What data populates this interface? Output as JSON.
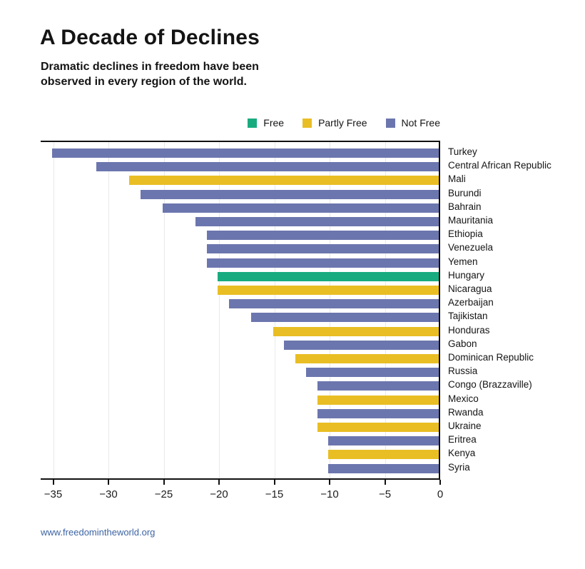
{
  "title": "A Decade of Declines",
  "subtitle": {
    "line1": "Dramatic declines in freedom have been",
    "line2": "observed in every region of the world."
  },
  "legend": [
    {
      "label": "Free",
      "color": "#19ab80"
    },
    {
      "label": "Partly Free",
      "color": "#e9be24"
    },
    {
      "label": "Not Free",
      "color": "#6c76ae"
    }
  ],
  "footer": {
    "url": "www.freedomintheworld.org"
  },
  "chart_data": {
    "type": "bar",
    "orientation": "horizontal",
    "title": "A Decade of Declines",
    "subtitle": "Dramatic declines in freedom have been observed in every region of the world.",
    "xlabel": "",
    "ylabel": "",
    "xlim": [
      -36,
      0
    ],
    "x_ticks": [
      -35,
      -30,
      -25,
      -20,
      -15,
      -10,
      -5,
      0
    ],
    "x_tick_labels": [
      "−35",
      "−30",
      "−25",
      "−20",
      "−15",
      "−10",
      "−5",
      "0"
    ],
    "grid": true,
    "legend_position": "top-right",
    "legend_entries": [
      "Free",
      "Partly Free",
      "Not Free"
    ],
    "status_colors": {
      "Free": "#19ab80",
      "Partly Free": "#e9be24",
      "Not Free": "#6c76ae"
    },
    "categories": [
      "Turkey",
      "Central African Republic",
      "Mali",
      "Burundi",
      "Bahrain",
      "Mauritania",
      "Ethiopia",
      "Venezuela",
      "Yemen",
      "Hungary",
      "Nicaragua",
      "Azerbaijan",
      "Tajikistan",
      "Honduras",
      "Gabon",
      "Dominican Republic",
      "Russia",
      "Congo (Brazzaville)",
      "Mexico",
      "Rwanda",
      "Ukraine",
      "Eritrea",
      "Kenya",
      "Syria"
    ],
    "values": [
      -35,
      -31,
      -28,
      -27,
      -25,
      -22,
      -21,
      -21,
      -21,
      -20,
      -20,
      -19,
      -17,
      -15,
      -14,
      -13,
      -12,
      -11,
      -11,
      -11,
      -11,
      -10,
      -10,
      -10
    ],
    "statuses": [
      "Not Free",
      "Not Free",
      "Partly Free",
      "Not Free",
      "Not Free",
      "Not Free",
      "Not Free",
      "Not Free",
      "Not Free",
      "Free",
      "Partly Free",
      "Not Free",
      "Not Free",
      "Partly Free",
      "Not Free",
      "Partly Free",
      "Not Free",
      "Not Free",
      "Partly Free",
      "Not Free",
      "Partly Free",
      "Not Free",
      "Partly Free",
      "Not Free"
    ]
  }
}
